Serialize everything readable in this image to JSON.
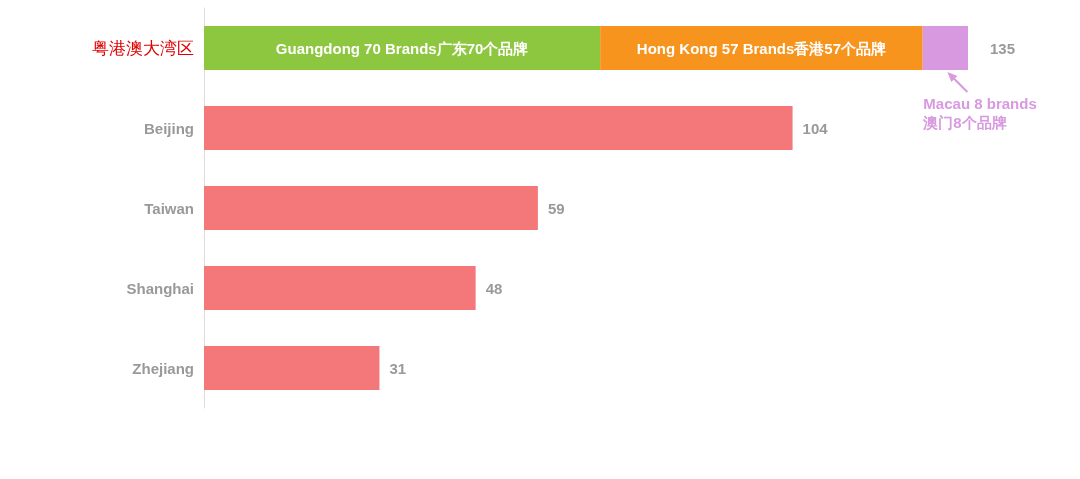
{
  "chart_data": {
    "type": "bar",
    "orientation": "horizontal",
    "stacked": true,
    "categories": [
      "粤港澳大湾区",
      "Beijing",
      "Taiwan",
      "Shanghai",
      "Zhejiang"
    ],
    "series": [
      {
        "name": null,
        "color": "#8dc63f",
        "values": [
          70,
          null,
          null,
          null,
          null
        ],
        "value_labels": [
          "Guangdong 70 Brands广东70个品牌",
          null,
          null,
          null,
          null
        ]
      },
      {
        "name": null,
        "color": "#f7941d",
        "values": [
          57,
          null,
          null,
          null,
          null
        ],
        "value_labels": [
          "Hong Kong 57 Brands香港57个品牌",
          null,
          null,
          null,
          null
        ]
      },
      {
        "name": null,
        "color": "#d899e0",
        "values": [
          8,
          null,
          null,
          null,
          null
        ]
      },
      {
        "name": null,
        "color": "#f4777a",
        "values": [
          null,
          104,
          59,
          48,
          31
        ],
        "value_labels": [
          null,
          "104",
          "59",
          "48",
          "31"
        ]
      }
    ],
    "totals": [
      "135",
      null,
      null,
      null,
      null
    ],
    "annotations": [
      "Macau 8 brands\n澳门8个品牌"
    ],
    "tick_labels": "y",
    "grid": false
  }
}
